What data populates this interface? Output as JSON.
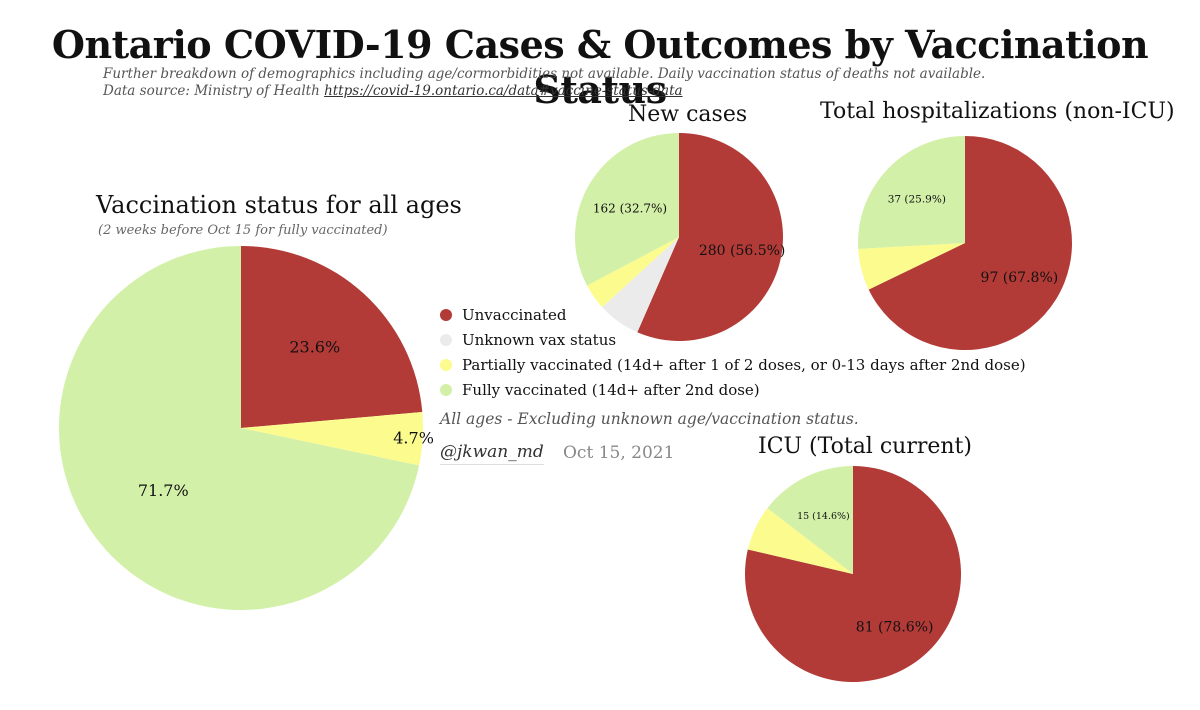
{
  "title": "Ontario COVID-19 Cases & Outcomes by Vaccination Status",
  "subtitle_line1": "Further breakdown of demographics including age/cormorbidities not available. Daily vaccination status of deaths not available.",
  "subtitle_source_label": "Data source: Ministry of Health ",
  "subtitle_source_link": "https://covid-19.ontario.ca/data#vaccine-status-data",
  "colors": {
    "unvaccinated": "#b23a37",
    "unknown": "#ebebeb",
    "partial": "#fbfb8e",
    "fully": "#d3f0a9"
  },
  "legend": [
    {
      "key": "unvaccinated",
      "label": "Unvaccinated"
    },
    {
      "key": "unknown",
      "label": "Unknown vax status"
    },
    {
      "key": "partial",
      "label": "Partially vaccinated (14d+ after 1 of 2 doses, or 0-13 days after 2nd dose)"
    },
    {
      "key": "fully",
      "label": "Fully vaccinated (14d+ after 2nd dose)"
    }
  ],
  "footnote": "All ages - Excluding unknown age/vaccination status.",
  "handle": "@jkwan_md",
  "date": "Oct 15, 2021",
  "chart_data": [
    {
      "id": "all-ages",
      "type": "pie",
      "title": "Vaccination status for all ages",
      "note": "(2 weeks before Oct 15 for fully vaccinated)",
      "slices": [
        {
          "key": "unvaccinated",
          "value": 23.6,
          "label": "23.6%"
        },
        {
          "key": "partial",
          "value": 4.7,
          "label": "4.7%"
        },
        {
          "key": "fully",
          "value": 71.7,
          "label": "71.7%"
        }
      ]
    },
    {
      "id": "new-cases",
      "type": "pie",
      "title": "New cases",
      "slices": [
        {
          "key": "unvaccinated",
          "value": 280,
          "label": "280 (56.5%)"
        },
        {
          "key": "unknown",
          "value": 33,
          "label": ""
        },
        {
          "key": "partial",
          "value": 20,
          "label": ""
        },
        {
          "key": "fully",
          "value": 162,
          "label": "162 (32.7%)"
        }
      ]
    },
    {
      "id": "hospitalizations",
      "type": "pie",
      "title": "Total hospitalizations (non-ICU)",
      "slices": [
        {
          "key": "unvaccinated",
          "value": 97,
          "label": "97 (67.8%)"
        },
        {
          "key": "partial",
          "value": 9,
          "label": ""
        },
        {
          "key": "fully",
          "value": 37,
          "label": "37 (25.9%)"
        }
      ]
    },
    {
      "id": "icu",
      "type": "pie",
      "title": "ICU (Total current)",
      "slices": [
        {
          "key": "unvaccinated",
          "value": 81,
          "label": "81 (78.6%)"
        },
        {
          "key": "partial",
          "value": 7,
          "label": ""
        },
        {
          "key": "fully",
          "value": 15,
          "label": "15 (14.6%)"
        }
      ]
    }
  ]
}
